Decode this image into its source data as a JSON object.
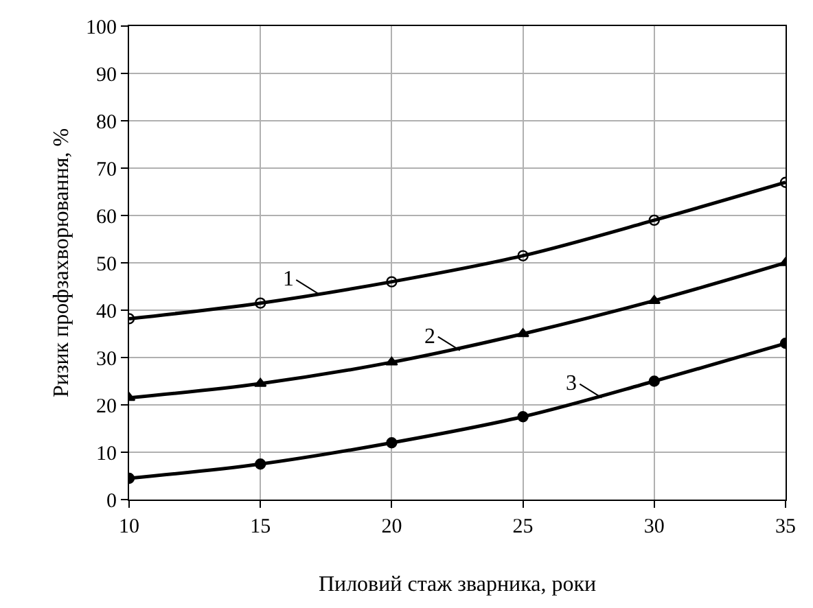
{
  "chart_data": {
    "type": "line",
    "xlabel": "Пиловий стаж зварника, роки",
    "ylabel": "Ризик профзахворювання, %",
    "x": [
      10,
      15,
      20,
      25,
      30,
      35
    ],
    "series": [
      {
        "color": "#000000",
        "marker": "circle-open",
        "values": [
          38.2,
          41.5,
          46,
          51.5,
          59,
          67
        ]
      },
      {
        "color": "#000000",
        "marker": "triangle",
        "values": [
          21.5,
          24.5,
          29,
          35,
          42,
          50
        ]
      },
      {
        "color": "#000000",
        "marker": "circle",
        "values": [
          4.5,
          7.5,
          12,
          17.5,
          25,
          33
        ]
      }
    ],
    "xlim": [
      10,
      35
    ],
    "xticks": [
      10,
      15,
      20,
      25,
      30,
      35
    ],
    "ylim": [
      0,
      100
    ],
    "yticks": [
      0,
      10,
      20,
      30,
      40,
      50,
      60,
      70,
      80,
      90,
      100
    ],
    "grid": true,
    "annotations": [
      {
        "text": "1",
        "x": 17.2,
        "y": 43.5
      },
      {
        "text": "2",
        "x": 22.6,
        "y": 31.5
      },
      {
        "text": "3",
        "x": 28,
        "y": 21.5
      }
    ]
  }
}
